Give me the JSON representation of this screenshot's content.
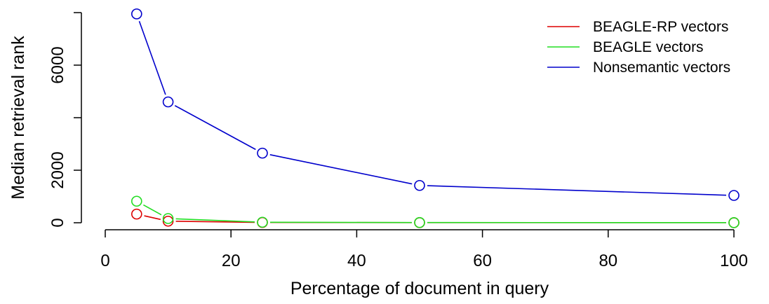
{
  "chart_data": {
    "type": "line",
    "title": "",
    "xlabel": "Percentage of document in query",
    "ylabel": "Median retrieval rank",
    "x": [
      5,
      10,
      25,
      50,
      100
    ],
    "xlim": [
      0,
      100
    ],
    "ylim": [
      0,
      8000
    ],
    "xticks": [
      0,
      20,
      40,
      60,
      80,
      100
    ],
    "yticks": [
      0,
      2000,
      4000,
      6000
    ],
    "ytick_labels": [
      "0",
      "2000",
      "",
      "6000"
    ],
    "grid": false,
    "legend_position": "top-right",
    "series": [
      {
        "name": "BEAGLE-RP vectors",
        "color": "#dd0000",
        "values": [
          330,
          60,
          10,
          5,
          3
        ]
      },
      {
        "name": "BEAGLE vectors",
        "color": "#22dd22",
        "values": [
          820,
          160,
          20,
          8,
          4
        ]
      },
      {
        "name": "Nonsemantic vectors",
        "color": "#0000cc",
        "values": [
          7950,
          4600,
          2650,
          1420,
          1040
        ]
      }
    ]
  }
}
